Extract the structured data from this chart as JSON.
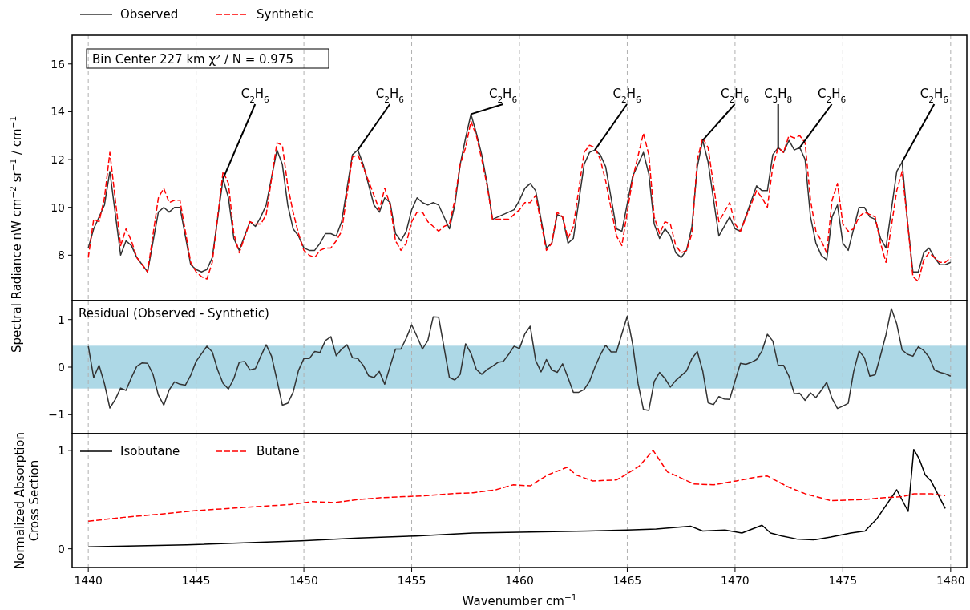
{
  "chart_data": [
    {
      "type": "line",
      "ylabel": "Spectral Radiance nW cm$^{−2}$ sr$^{−1}$ / cm$^{−1}$",
      "xlim": [
        1439.25,
        1480.75
      ],
      "xticks": [
        1440,
        1445,
        1450,
        1455,
        1460,
        1465,
        1470,
        1475,
        1480
      ],
      "ylim": [
        6.1,
        17.2
      ],
      "yticks": [
        8,
        10,
        12,
        14,
        16
      ],
      "grid": "x",
      "legend": "top",
      "tick_labels": "y",
      "annotations": [
        "Bin Center 227 km χ² / N = 0.975",
        {
          "text": "C$_{2}$H$_{6}$",
          "x": 1446.25,
          "y": 11.2
        },
        {
          "text": "C$_{2}$H$_{6}$",
          "x": 1452.5,
          "y": 12.4
        },
        {
          "text": "C$_{2}$H$_{6}$",
          "x": 1457.75,
          "y": 13.9
        },
        {
          "text": "C$_{2}$H$_{6}$",
          "x": 1463.5,
          "y": 12.4
        },
        {
          "text": "C$_{2}$H$_{6}$",
          "x": 1468.5,
          "y": 12.8
        },
        {
          "text": "C$_{3}$H$_{8}$",
          "x": 1472,
          "y": 12.5
        },
        {
          "text": "C$_{2}$H$_{6}$",
          "x": 1473,
          "y": 12.5
        },
        {
          "text": "C$_{2}$H$_{6}$",
          "x": 1477.75,
          "y": 11.9
        }
      ],
      "series": [
        {
          "name": "Observed",
          "color": "#333333",
          "x": [
            1440,
            1440.25,
            1440.75,
            1441,
            1441.5,
            1441.75,
            1442,
            1442.25,
            1442.75,
            1443.25,
            1443.5,
            1443.75,
            1444,
            1444.25,
            1444.75,
            1445,
            1445.25,
            1445.5,
            1445.75,
            1446.25,
            1446.5,
            1446.75,
            1447,
            1447.5,
            1447.75,
            1448,
            1448.25,
            1448.75,
            1449,
            1449.25,
            1449.5,
            1449.75,
            1450,
            1450.25,
            1450.5,
            1450.75,
            1451,
            1451.25,
            1451.5,
            1451.75,
            1452.25,
            1452.5,
            1452.75,
            1453.25,
            1453.5,
            1453.75,
            1454,
            1454.25,
            1454.5,
            1454.75,
            1455,
            1455.25,
            1455.5,
            1455.75,
            1456,
            1456.25,
            1456.75,
            1457,
            1457.25,
            1457.5,
            1457.75,
            1458,
            1458.25,
            1458.5,
            1458.75,
            1459,
            1459.25,
            1459.5,
            1459.75,
            1460,
            1460.25,
            1460.5,
            1460.75,
            1461.25,
            1461.5,
            1461.75,
            1462,
            1462.25,
            1462.5,
            1463,
            1463.25,
            1463.5,
            1463.75,
            1464,
            1464.5,
            1464.75,
            1465.25,
            1465.75,
            1466,
            1466.25,
            1466.5,
            1466.75,
            1467,
            1467.25,
            1467.5,
            1467.75,
            1468,
            1468.25,
            1468.5,
            1468.75,
            1469.25,
            1469.75,
            1470,
            1470.25,
            1471,
            1471.25,
            1471.5,
            1471.75,
            1472,
            1472.25,
            1472.5,
            1472.75,
            1473,
            1473.25,
            1473.5,
            1473.75,
            1474,
            1474.25,
            1474.5,
            1474.75,
            1475,
            1475.25,
            1475.75,
            1476,
            1476.25,
            1476.5,
            1476.75,
            1477,
            1477.5,
            1477.75,
            1478,
            1478.25,
            1478.5,
            1478.75,
            1479,
            1479.25,
            1479.5,
            1479.75,
            1480
          ],
          "values": [
            8.3,
            9.1,
            10.1,
            11.5,
            8.0,
            8.6,
            8.4,
            7.9,
            7.3,
            9.8,
            10.0,
            9.8,
            10.0,
            10.0,
            7.6,
            7.4,
            7.3,
            7.4,
            7.9,
            11.2,
            10.4,
            8.7,
            8.2,
            9.4,
            9.2,
            9.6,
            10.1,
            12.4,
            11.8,
            10.1,
            9.1,
            8.8,
            8.3,
            8.2,
            8.2,
            8.5,
            8.9,
            8.9,
            8.8,
            9.4,
            12.2,
            12.4,
            11.8,
            10.1,
            9.8,
            10.4,
            10.2,
            8.9,
            8.6,
            9.0,
            9.9,
            10.4,
            10.2,
            10.1,
            10.2,
            10.1,
            9.1,
            10.1,
            11.8,
            12.9,
            13.9,
            13.1,
            12.2,
            11.0,
            9.5,
            9.6,
            9.7,
            9.8,
            9.9,
            10.3,
            10.8,
            11.0,
            10.7,
            8.3,
            8.5,
            9.7,
            9.6,
            8.5,
            8.7,
            11.8,
            12.3,
            12.4,
            12.2,
            11.7,
            9.1,
            9.0,
            11.3,
            12.3,
            11.4,
            9.3,
            8.7,
            9.1,
            8.8,
            8.1,
            7.9,
            8.2,
            9.2,
            11.7,
            12.8,
            11.9,
            8.8,
            9.6,
            9.1,
            9.0,
            10.9,
            10.7,
            10.7,
            12.2,
            12.5,
            12.3,
            12.8,
            12.4,
            12.5,
            12.0,
            9.6,
            8.5,
            8.0,
            7.8,
            9.6,
            10.1,
            8.5,
            8.2,
            10.0,
            10.0,
            9.6,
            9.5,
            8.7,
            8.3,
            11.5,
            11.9,
            9.4,
            7.3,
            7.3,
            8.1,
            8.3,
            7.9,
            7.6,
            7.6,
            7.7
          ]
        },
        {
          "name": "Synthetic",
          "color": "#ff0000",
          "line_style": "dashed",
          "x": [
            1440,
            1440.25,
            1440.5,
            1440.75,
            1441,
            1441.5,
            1441.75,
            1442,
            1442.25,
            1442.75,
            1443.25,
            1443.5,
            1443.75,
            1444,
            1444.25,
            1444.75,
            1445,
            1445.25,
            1445.5,
            1445.75,
            1446.25,
            1446.5,
            1446.75,
            1447,
            1447.5,
            1447.75,
            1448,
            1448.25,
            1448.75,
            1449,
            1449.25,
            1449.5,
            1449.75,
            1450,
            1450.25,
            1450.5,
            1450.75,
            1451,
            1451.25,
            1451.5,
            1451.75,
            1452.25,
            1452.5,
            1452.75,
            1453.25,
            1453.5,
            1453.75,
            1454,
            1454.25,
            1454.5,
            1454.75,
            1455,
            1455.25,
            1455.5,
            1455.75,
            1456,
            1456.25,
            1456.5,
            1456.75,
            1457,
            1457.25,
            1457.5,
            1457.75,
            1458,
            1458.25,
            1458.5,
            1458.75,
            1459,
            1459.25,
            1459.5,
            1459.75,
            1460,
            1460.25,
            1460.5,
            1460.75,
            1461.25,
            1461.5,
            1461.75,
            1462,
            1462.25,
            1462.5,
            1463,
            1463.25,
            1463.5,
            1463.75,
            1464,
            1464.5,
            1464.75,
            1465.25,
            1465.75,
            1466,
            1466.25,
            1466.5,
            1466.75,
            1467,
            1467.25,
            1467.5,
            1467.75,
            1468,
            1468.25,
            1468.5,
            1468.75,
            1469.25,
            1469.75,
            1470,
            1470.25,
            1471,
            1471.25,
            1471.5,
            1471.75,
            1472,
            1472.25,
            1472.5,
            1472.75,
            1473,
            1473.25,
            1473.5,
            1473.75,
            1474,
            1474.25,
            1474.5,
            1474.75,
            1475,
            1475.25,
            1475.5,
            1475.75,
            1476,
            1476.25,
            1476.5,
            1476.75,
            1477,
            1477.5,
            1477.75,
            1478,
            1478.25,
            1478.5,
            1478.75,
            1479,
            1479.25,
            1479.5,
            1479.75,
            1480
          ],
          "values": [
            7.9,
            9.5,
            9.4,
            10.4,
            12.3,
            8.4,
            9.1,
            8.6,
            7.9,
            7.3,
            10.4,
            10.8,
            10.2,
            10.3,
            10.3,
            7.7,
            7.3,
            7.1,
            7.0,
            7.7,
            11.5,
            11.0,
            8.9,
            8.1,
            9.4,
            9.3,
            9.3,
            9.7,
            12.7,
            12.6,
            10.9,
            9.8,
            8.9,
            8.2,
            8.0,
            7.9,
            8.2,
            8.3,
            8.3,
            8.6,
            9.0,
            12.1,
            12.2,
            11.7,
            10.5,
            9.9,
            10.8,
            10.1,
            8.6,
            8.2,
            8.5,
            9.4,
            9.8,
            9.8,
            9.4,
            9.2,
            9.0,
            9.2,
            9.3,
            10.3,
            11.8,
            12.5,
            13.6,
            13.0,
            12.0,
            10.9,
            9.5,
            9.5,
            9.5,
            9.5,
            9.7,
            9.9,
            10.2,
            10.2,
            10.5,
            8.2,
            8.5,
            9.8,
            9.6,
            8.7,
            9.2,
            12.3,
            12.6,
            12.5,
            12.0,
            11.1,
            8.8,
            8.4,
            11.2,
            13.1,
            12.2,
            9.6,
            8.9,
            9.4,
            9.3,
            8.4,
            8.1,
            8.2,
            8.9,
            12.0,
            12.9,
            12.5,
            9.4,
            10.2,
            9.3,
            9.0,
            10.7,
            10.4,
            10.0,
            11.7,
            12.5,
            12.3,
            13.0,
            12.9,
            13.0,
            12.7,
            10.3,
            9.0,
            8.6,
            8.1,
            10.3,
            11.0,
            9.3,
            9.0,
            9.1,
            9.6,
            9.8,
            9.7,
            9.6,
            8.5,
            7.7,
            10.7,
            11.5,
            9.4,
            7.1,
            6.9,
            7.8,
            8.1,
            7.9,
            7.7,
            7.7,
            7.9
          ]
        }
      ]
    },
    {
      "type": "line",
      "xlim": [
        1439.25,
        1480.75
      ],
      "xticks": [
        1440,
        1445,
        1450,
        1455,
        1460,
        1465,
        1470,
        1475,
        1480
      ],
      "ylim": [
        -1.4,
        1.4
      ],
      "yticks": [
        {
          "value": -1,
          "label": "−1"
        },
        0,
        1
      ],
      "grid": "x",
      "tick_labels": "y",
      "annotations": [
        "Residual (Observed - Synthetic)"
      ],
      "bands": [
        {
          "axis": "y",
          "from": -0.45,
          "to": 0.45,
          "color": "#add8e6"
        }
      ],
      "series": [
        {
          "color": "#333333",
          "x": [
            1440,
            1440.25,
            1440.5,
            1440.75,
            1441,
            1441.25,
            1441.5,
            1441.75,
            1442,
            1442.25,
            1442.5,
            1442.75,
            1443,
            1443.25,
            1443.5,
            1443.75,
            1444,
            1444.25,
            1444.5,
            1444.75,
            1445,
            1445.25,
            1445.5,
            1445.75,
            1446,
            1446.25,
            1446.5,
            1446.75,
            1447,
            1447.25,
            1447.5,
            1447.75,
            1448,
            1448.25,
            1448.5,
            1448.75,
            1449,
            1449.25,
            1449.5,
            1449.75,
            1450,
            1450.25,
            1450.5,
            1450.75,
            1451,
            1451.25,
            1451.5,
            1451.75,
            1452,
            1452.25,
            1452.5,
            1452.75,
            1453,
            1453.25,
            1453.5,
            1453.75,
            1454,
            1454.25,
            1454.5,
            1454.75,
            1455,
            1455.25,
            1455.5,
            1455.75,
            1456,
            1456.25,
            1456.75,
            1457,
            1457.25,
            1457.5,
            1457.75,
            1458,
            1458.25,
            1458.5,
            1458.75,
            1459,
            1459.25,
            1459.5,
            1459.75,
            1460,
            1460.25,
            1460.5,
            1460.75,
            1461,
            1461.25,
            1461.5,
            1461.75,
            1462,
            1462.25,
            1462.5,
            1462.75,
            1463,
            1463.25,
            1463.5,
            1463.75,
            1464,
            1464.25,
            1464.5,
            1464.75,
            1465,
            1465.25,
            1465.5,
            1465.75,
            1466,
            1466.25,
            1466.5,
            1466.75,
            1467,
            1467.25,
            1467.5,
            1467.75,
            1468,
            1468.25,
            1468.5,
            1468.75,
            1469,
            1469.25,
            1469.5,
            1469.75,
            1470,
            1470.25,
            1470.5,
            1470.75,
            1471,
            1471.25,
            1471.5,
            1471.75,
            1472,
            1472.25,
            1472.5,
            1472.75,
            1473,
            1473.25,
            1473.5,
            1473.75,
            1474,
            1474.25,
            1474.5,
            1474.75,
            1475,
            1475.25,
            1475.5,
            1475.75,
            1476,
            1476.25,
            1476.5,
            1476.75,
            1477,
            1477.25,
            1477.5,
            1477.75,
            1478,
            1478.25,
            1478.5,
            1478.75,
            1479,
            1479.25,
            1479.5,
            1479.75,
            1480
          ],
          "values": [
            0.44,
            -0.22,
            0.04,
            -0.35,
            -0.86,
            -0.68,
            -0.44,
            -0.49,
            -0.22,
            0.02,
            0.09,
            0.08,
            -0.15,
            -0.59,
            -0.8,
            -0.48,
            -0.31,
            -0.36,
            -0.38,
            -0.17,
            0.12,
            0.28,
            0.44,
            0.32,
            -0.06,
            -0.34,
            -0.46,
            -0.24,
            0.1,
            0.12,
            -0.06,
            -0.03,
            0.23,
            0.47,
            0.23,
            -0.27,
            -0.8,
            -0.76,
            -0.53,
            -0.07,
            0.18,
            0.18,
            0.33,
            0.31,
            0.56,
            0.64,
            0.24,
            0.38,
            0.47,
            0.2,
            0.18,
            0.04,
            -0.18,
            -0.22,
            -0.09,
            -0.36,
            0.02,
            0.38,
            0.38,
            0.61,
            0.89,
            0.64,
            0.38,
            0.56,
            1.06,
            1.05,
            -0.22,
            -0.27,
            -0.15,
            0.49,
            0.29,
            -0.05,
            -0.15,
            -0.05,
            0.02,
            0.1,
            0.12,
            0.27,
            0.44,
            0.39,
            0.7,
            0.86,
            0.14,
            -0.1,
            0.16,
            -0.06,
            -0.11,
            0.07,
            -0.22,
            -0.53,
            -0.53,
            -0.47,
            -0.3,
            0.0,
            0.26,
            0.46,
            0.32,
            0.32,
            0.7,
            1.07,
            0.48,
            -0.34,
            -0.89,
            -0.91,
            -0.3,
            -0.11,
            -0.24,
            -0.42,
            -0.28,
            -0.18,
            -0.08,
            0.18,
            0.33,
            -0.08,
            -0.75,
            -0.79,
            -0.62,
            -0.67,
            -0.68,
            -0.29,
            0.08,
            0.06,
            0.1,
            0.16,
            0.34,
            0.69,
            0.55,
            0.04,
            0.04,
            -0.19,
            -0.56,
            -0.55,
            -0.7,
            -0.54,
            -0.64,
            -0.49,
            -0.32,
            -0.66,
            -0.87,
            -0.82,
            -0.76,
            -0.1,
            0.34,
            0.2,
            -0.19,
            -0.16,
            0.25,
            0.68,
            1.23,
            0.91,
            0.36,
            0.27,
            0.23,
            0.43,
            0.35,
            0.21,
            -0.06,
            -0.11,
            -0.14,
            -0.19
          ]
        }
      ]
    },
    {
      "type": "line",
      "xlabel": "Wavenumber cm$^{−1}$",
      "ylabel": "Normalized Absorption\nCross Section",
      "xlim": [
        1439.25,
        1480.75
      ],
      "xticks": [
        1440,
        1445,
        1450,
        1455,
        1460,
        1465,
        1470,
        1475,
        1480
      ],
      "ylim": [
        -0.19,
        1.17
      ],
      "yticks": [
        0,
        1
      ],
      "grid": "x",
      "legend": "top left",
      "series": [
        {
          "name": "Isobutane",
          "color": "#000000",
          "x": [
            1440,
            1444.57,
            1449.88,
            1452.53,
            1455.19,
            1457.84,
            1460.5,
            1463.16,
            1465,
            1466.34,
            1467.93,
            1468.5,
            1469.53,
            1470.32,
            1471.25,
            1471.65,
            1472.18,
            1472.85,
            1473.64,
            1474.44,
            1475.37,
            1476.03,
            1476.56,
            1477.5,
            1478.03,
            1478.29,
            1478.55,
            1478.82,
            1479.09,
            1479.75
          ],
          "values": [
            0.02,
            0.04,
            0.08,
            0.11,
            0.13,
            0.16,
            0.17,
            0.18,
            0.19,
            0.2,
            0.23,
            0.18,
            0.19,
            0.16,
            0.24,
            0.16,
            0.13,
            0.1,
            0.09,
            0.12,
            0.16,
            0.18,
            0.3,
            0.6,
            0.38,
            1.01,
            0.91,
            0.75,
            0.69,
            0.41
          ]
        },
        {
          "name": "Butane",
          "color": "#ff0000",
          "line_style": "dashed",
          "x": [
            1440,
            1441.65,
            1443.23,
            1445.1,
            1447.2,
            1449.35,
            1450.4,
            1451.4,
            1452.5,
            1453.6,
            1454.65,
            1455.7,
            1456.8,
            1457.85,
            1458.9,
            1459.7,
            1460.5,
            1461.3,
            1462.22,
            1462.63,
            1463.4,
            1464.5,
            1464.9,
            1465.55,
            1466.2,
            1466.87,
            1467.4,
            1468.07,
            1469,
            1470.06,
            1471,
            1471.5,
            1472.45,
            1473.25,
            1474.44,
            1475.9,
            1476.96,
            1477.76,
            1478.3,
            1479.1,
            1479.75
          ],
          "values": [
            0.28,
            0.32,
            0.35,
            0.39,
            0.42,
            0.45,
            0.48,
            0.47,
            0.5,
            0.52,
            0.53,
            0.54,
            0.56,
            0.57,
            0.6,
            0.65,
            0.64,
            0.75,
            0.83,
            0.75,
            0.69,
            0.7,
            0.75,
            0.84,
            1.0,
            0.78,
            0.73,
            0.66,
            0.65,
            0.69,
            0.73,
            0.74,
            0.63,
            0.56,
            0.49,
            0.5,
            0.52,
            0.53,
            0.56,
            0.56,
            0.54
          ]
        }
      ]
    }
  ]
}
